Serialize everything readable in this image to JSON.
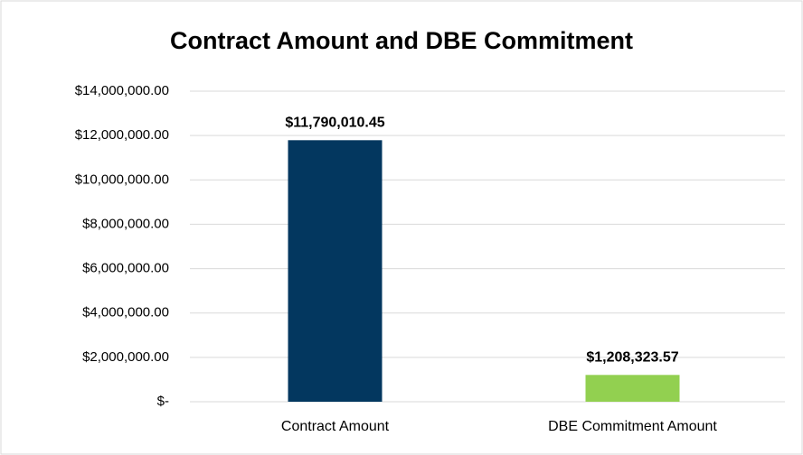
{
  "chart_data": {
    "type": "bar",
    "title": "Contract Amount and DBE Commitment",
    "categories": [
      "Contract Amount",
      "DBE Commitment Amount"
    ],
    "values": [
      11790010.45,
      1208323.57
    ],
    "value_labels": [
      "$11,790,010.45",
      "$1,208,323.57"
    ],
    "colors": [
      "#03375f",
      "#92d050"
    ],
    "ylim": [
      0,
      14000000
    ],
    "yticks": [
      {
        "value": 0,
        "label": "$-"
      },
      {
        "value": 2000000,
        "label": "$2,000,000.00"
      },
      {
        "value": 4000000,
        "label": "$4,000,000.00"
      },
      {
        "value": 6000000,
        "label": "$6,000,000.00"
      },
      {
        "value": 8000000,
        "label": "$8,000,000.00"
      },
      {
        "value": 10000000,
        "label": "$10,000,000.00"
      },
      {
        "value": 12000000,
        "label": "$12,000,000.00"
      },
      {
        "value": 14000000,
        "label": "$14,000,000.00"
      }
    ],
    "grid": true
  }
}
